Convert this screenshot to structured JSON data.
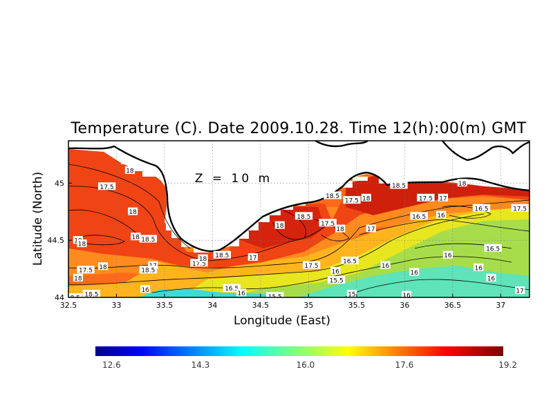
{
  "chart_data": {
    "type": "heatmap",
    "title": "Temperature (C). Date 2009.10.28. Time 12(h):00(m) GMT",
    "xlabel": "Longitude (East)",
    "ylabel": "Latitude (North)",
    "annotation": "Z = 10 m",
    "xlim": [
      32.5,
      37.3
    ],
    "ylim": [
      44.0,
      45.37
    ],
    "x_ticks": [
      "32.5",
      "33",
      "33.5",
      "34",
      "34.5",
      "35",
      "35.5",
      "36",
      "36.5",
      "37"
    ],
    "y_ticks": [
      "44",
      "44.5",
      "45"
    ],
    "x_tick_values": [
      32.5,
      33,
      33.5,
      34,
      34.5,
      35,
      35.5,
      36,
      36.5,
      37
    ],
    "y_tick_values": [
      44,
      44.5,
      45
    ],
    "grid": true,
    "colorbar": {
      "vmin": 12.6,
      "vmax": 19.2,
      "ticks": [
        "12.6",
        "14.3",
        "16.0",
        "17.6",
        "19.2"
      ],
      "colormap": [
        "#00008f",
        "#0000ff",
        "#00ffff",
        "#ffff00",
        "#ff0000",
        "#800000"
      ]
    },
    "contour_labels": [
      {
        "text": "18",
        "lon": 32.6,
        "lat": 44.5
      },
      {
        "text": "18",
        "lon": 32.64,
        "lat": 44.47
      },
      {
        "text": "17.5",
        "lon": 32.68,
        "lat": 44.24
      },
      {
        "text": "18",
        "lon": 32.6,
        "lat": 44.17
      },
      {
        "text": "18.5",
        "lon": 32.74,
        "lat": 44.03
      },
      {
        "text": "18.5",
        "lon": 32.55,
        "lat": 44.0
      },
      {
        "text": "18",
        "lon": 32.86,
        "lat": 44.27
      },
      {
        "text": "17.5",
        "lon": 32.9,
        "lat": 44.97
      },
      {
        "text": "18",
        "lon": 33.14,
        "lat": 45.11
      },
      {
        "text": "18",
        "lon": 33.17,
        "lat": 44.75
      },
      {
        "text": "18",
        "lon": 33.2,
        "lat": 44.53
      },
      {
        "text": "18.5",
        "lon": 33.33,
        "lat": 44.51
      },
      {
        "text": "17",
        "lon": 33.38,
        "lat": 44.28
      },
      {
        "text": "18.5",
        "lon": 33.33,
        "lat": 44.24
      },
      {
        "text": "16",
        "lon": 33.3,
        "lat": 44.07
      },
      {
        "text": "17.5",
        "lon": 33.86,
        "lat": 44.3
      },
      {
        "text": "18",
        "lon": 33.9,
        "lat": 44.34
      },
      {
        "text": "18.5",
        "lon": 34.1,
        "lat": 44.37
      },
      {
        "text": "17",
        "lon": 34.42,
        "lat": 44.35
      },
      {
        "text": "16.5",
        "lon": 34.2,
        "lat": 44.08
      },
      {
        "text": "16",
        "lon": 34.3,
        "lat": 44.04
      },
      {
        "text": "15.5",
        "lon": 34.65,
        "lat": 44.01
      },
      {
        "text": "18",
        "lon": 34.7,
        "lat": 44.63
      },
      {
        "text": "18.5",
        "lon": 34.95,
        "lat": 44.71
      },
      {
        "text": "17.5",
        "lon": 35.03,
        "lat": 44.28
      },
      {
        "text": "17.5",
        "lon": 35.2,
        "lat": 44.65
      },
      {
        "text": "18",
        "lon": 35.33,
        "lat": 44.6
      },
      {
        "text": "18.5",
        "lon": 35.25,
        "lat": 44.89
      },
      {
        "text": "17.5",
        "lon": 35.45,
        "lat": 44.85
      },
      {
        "text": "18",
        "lon": 35.6,
        "lat": 44.87
      },
      {
        "text": "18.5",
        "lon": 35.94,
        "lat": 44.98
      },
      {
        "text": "16",
        "lon": 35.28,
        "lat": 44.23
      },
      {
        "text": "16.5",
        "lon": 35.43,
        "lat": 44.32
      },
      {
        "text": "15.5",
        "lon": 35.29,
        "lat": 44.15
      },
      {
        "text": "15",
        "lon": 35.45,
        "lat": 44.03
      },
      {
        "text": "17",
        "lon": 35.65,
        "lat": 44.6
      },
      {
        "text": "16",
        "lon": 35.8,
        "lat": 44.28
      },
      {
        "text": "16",
        "lon": 36.1,
        "lat": 44.22
      },
      {
        "text": "16",
        "lon": 36.02,
        "lat": 44.02
      },
      {
        "text": "17.5",
        "lon": 36.22,
        "lat": 44.87
      },
      {
        "text": "17",
        "lon": 36.4,
        "lat": 44.87
      },
      {
        "text": "16.5",
        "lon": 36.15,
        "lat": 44.71
      },
      {
        "text": "16",
        "lon": 36.38,
        "lat": 44.72
      },
      {
        "text": "18",
        "lon": 36.6,
        "lat": 45.0
      },
      {
        "text": "16.5",
        "lon": 36.8,
        "lat": 44.78
      },
      {
        "text": "16",
        "lon": 36.45,
        "lat": 44.37
      },
      {
        "text": "16.5",
        "lon": 36.92,
        "lat": 44.43
      },
      {
        "text": "16",
        "lon": 36.9,
        "lat": 44.17
      },
      {
        "text": "16",
        "lon": 36.77,
        "lat": 44.26
      },
      {
        "text": "17.5",
        "lon": 37.2,
        "lat": 44.78
      },
      {
        "text": "17",
        "lon": 37.2,
        "lat": 44.06
      }
    ]
  }
}
